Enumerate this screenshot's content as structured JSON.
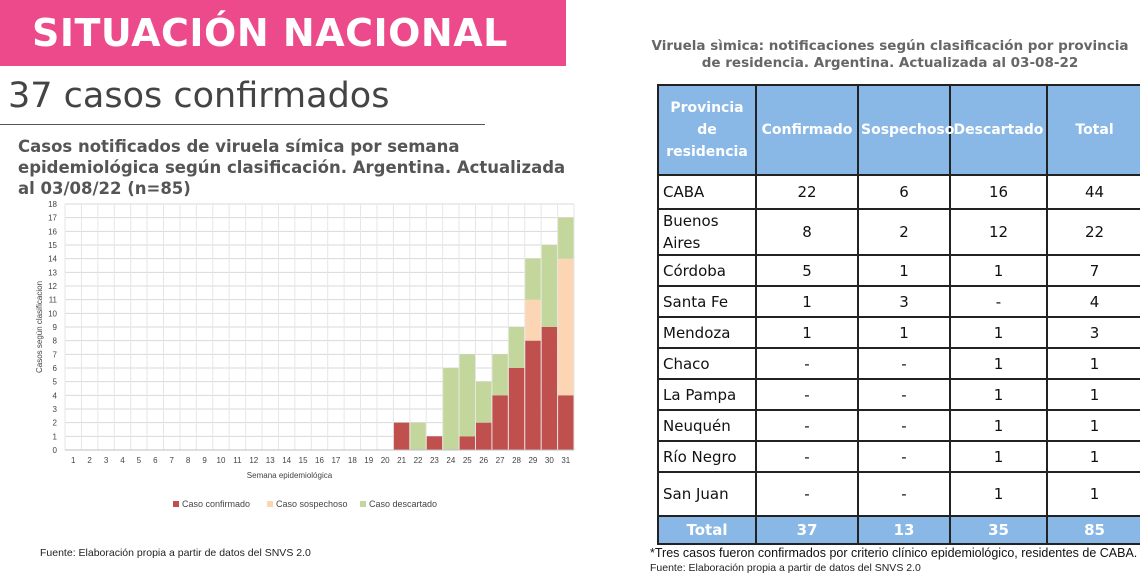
{
  "banner": {
    "title": "SITUACIÓN NACIONAL"
  },
  "headline": "37 casos confirmados",
  "colors": {
    "banner": "#ec4a8a",
    "confirmed": "#c0504d",
    "suspected": "#fcd5b5",
    "discarded": "#c3d69b",
    "table_header": "#8ab8e6"
  },
  "chart_data": {
    "type": "bar",
    "stacked": true,
    "title": "Casos notificados de viruela símica por semana epidemiológica según clasificación. Argentina. Actualizada al 03/08/22 (n=85)",
    "xlabel": "Semana epidemiológica",
    "ylabel": "Casos según clasificacion",
    "ylim": [
      0,
      18
    ],
    "grid": true,
    "legend_position": "bottom",
    "categories": [
      "1",
      "2",
      "3",
      "4",
      "5",
      "6",
      "7",
      "8",
      "9",
      "10",
      "11",
      "12",
      "13",
      "14",
      "15",
      "16",
      "17",
      "18",
      "19",
      "20",
      "21",
      "22",
      "23",
      "24",
      "25",
      "26",
      "27",
      "28",
      "29",
      "30",
      "31"
    ],
    "series": [
      {
        "name": "Caso confirmado",
        "color": "#c0504d",
        "values": [
          0,
          0,
          0,
          0,
          0,
          0,
          0,
          0,
          0,
          0,
          0,
          0,
          0,
          0,
          0,
          0,
          0,
          0,
          0,
          0,
          2,
          0,
          1,
          0,
          1,
          2,
          4,
          6,
          8,
          9,
          4
        ]
      },
      {
        "name": "Caso sospechoso",
        "color": "#fcd5b5",
        "values": [
          0,
          0,
          0,
          0,
          0,
          0,
          0,
          0,
          0,
          0,
          0,
          0,
          0,
          0,
          0,
          0,
          0,
          0,
          0,
          0,
          0,
          0,
          0,
          0,
          0,
          0,
          0,
          0,
          3,
          0,
          10
        ]
      },
      {
        "name": "Caso descartado",
        "color": "#c3d69b",
        "values": [
          0,
          0,
          0,
          0,
          0,
          0,
          0,
          0,
          0,
          0,
          0,
          0,
          0,
          0,
          0,
          0,
          0,
          0,
          0,
          0,
          0,
          2,
          0,
          6,
          6,
          3,
          3,
          3,
          3,
          6,
          3
        ]
      }
    ]
  },
  "source_left": "Fuente: Elaboración propia a partir de datos del SNVS 2.0",
  "table": {
    "title": "Viruela sìmica: notificaciones según clasificación por provincia de residencia. Argentina. Actualizada al 03-08-22",
    "headers": [
      "Provincia de residencia",
      "Confirmado",
      "Sospechoso",
      "Descartado",
      "Total"
    ],
    "rows": [
      [
        "CABA",
        "22",
        "6",
        "16",
        "44"
      ],
      [
        "Buenos Aires",
        "8",
        "2",
        "12",
        "22"
      ],
      [
        "Córdoba",
        "5",
        "1",
        "1",
        "7"
      ],
      [
        "Santa Fe",
        "1",
        "3",
        "-",
        "4"
      ],
      [
        "Mendoza",
        "1",
        "1",
        "1",
        "3"
      ],
      [
        "Chaco",
        "-",
        "-",
        "1",
        "1"
      ],
      [
        "La Pampa",
        "-",
        "-",
        "1",
        "1"
      ],
      [
        "Neuquén",
        "-",
        "-",
        "1",
        "1"
      ],
      [
        "Río Negro",
        "-",
        "-",
        "1",
        "1"
      ],
      [
        "San Juan",
        "-",
        "-",
        "1",
        "1"
      ]
    ],
    "total": [
      "Total",
      "37",
      "13",
      "35",
      "85"
    ]
  },
  "footnote": "*Tres casos  fueron confirmados por criterio clínico epidemiológico, residentes de CABA.",
  "source_right": "Fuente: Elaboración propia a partir de datos del SNVS 2.0"
}
